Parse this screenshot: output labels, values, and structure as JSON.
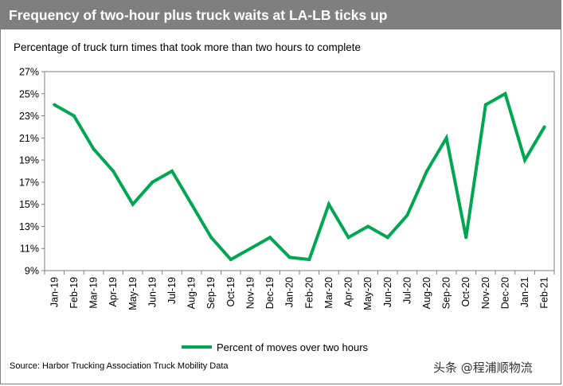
{
  "header": {
    "title": "Frequency of two-hour plus truck waits at LA-LB ticks up"
  },
  "chart_data": {
    "type": "line",
    "title": "Frequency of two-hour plus truck waits at LA-LB ticks up",
    "subtitle": "Percentage of truck turn times that took more than two hours to complete",
    "xlabel": "",
    "ylabel": "",
    "categories": [
      "Jan-19",
      "Feb-19",
      "Mar-19",
      "Apr-19",
      "May-19",
      "Jun-19",
      "Jul-19",
      "Aug-19",
      "Sep-19",
      "Oct-19",
      "Nov-19",
      "Dec-19",
      "Jan-20",
      "Feb-20",
      "Mar-20",
      "Apr-20",
      "May-20",
      "Jun-20",
      "Jul-20",
      "Aug-20",
      "Sep-20",
      "Oct-20",
      "Nov-20",
      "Dec-20",
      "Jan-21",
      "Feb-21"
    ],
    "series": [
      {
        "name": "Percent of moves over two hours",
        "color": "#00a651",
        "values": [
          24,
          23,
          20,
          18,
          15,
          17,
          18,
          15,
          12,
          10,
          11,
          12,
          10.2,
          10,
          15,
          12,
          13,
          12,
          14,
          18,
          21,
          12,
          24,
          25,
          19,
          22
        ]
      }
    ],
    "ylim": [
      9,
      27
    ],
    "yticks": [
      9,
      11,
      13,
      15,
      17,
      19,
      21,
      23,
      25,
      27
    ],
    "ytick_format": "percent",
    "grid": false,
    "legend": "bottom-center"
  },
  "source": "Source: Harbor Trucking Association Truck Mobility Data",
  "watermark": "头条 @程浦顺物流"
}
